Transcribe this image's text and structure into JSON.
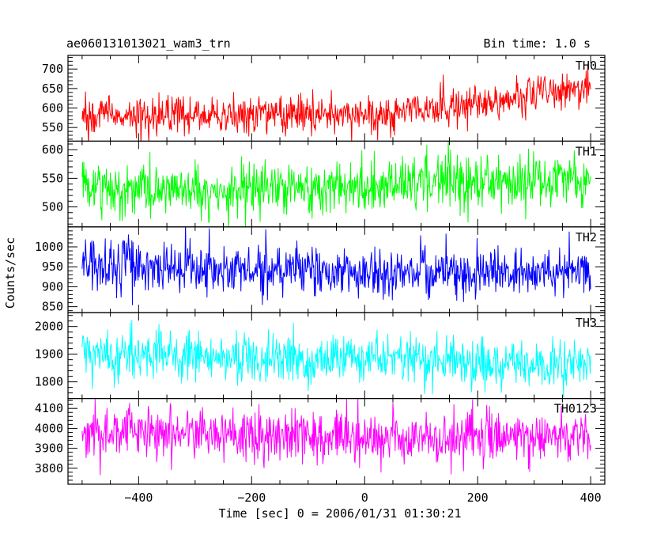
{
  "header": {
    "title": "ae060131013021_wam3_trn",
    "bin_time": "Bin time: 1.0 s"
  },
  "axes": {
    "ylabel": "Counts/sec",
    "xlabel": "Time [sec] 0 = 2006/01/31 01:30:21"
  },
  "chart_data": {
    "type": "line",
    "title": "ae060131013021_wam3_trn",
    "subtitle": "Bin time: 1.0 s",
    "xlabel": "Time [sec] 0 = 2006/01/31 01:30:21",
    "ylabel": "Counts/sec",
    "xlim": [
      -525,
      425
    ],
    "x_ticks": [
      -400,
      -200,
      0,
      200,
      400
    ],
    "x_range": [
      -500,
      400
    ],
    "bin_seconds": 1.0,
    "grid": false,
    "panels": [
      {
        "name": "TH0",
        "color": "#ff0000",
        "ylim": [
          515,
          735
        ],
        "y_ticks": [
          550,
          600,
          650,
          700
        ],
        "trend": [
          [
            -500,
            580
          ],
          [
            -200,
            580
          ],
          [
            0,
            585
          ],
          [
            100,
            600
          ],
          [
            200,
            610
          ],
          [
            300,
            635
          ],
          [
            400,
            660
          ]
        ],
        "noise_sd": 24
      },
      {
        "name": "TH1",
        "color": "#00ff00",
        "ylim": [
          465,
          615
        ],
        "y_ticks": [
          500,
          550,
          600
        ],
        "trend": [
          [
            -500,
            530
          ],
          [
            -100,
            530
          ],
          [
            100,
            540
          ],
          [
            400,
            545
          ]
        ],
        "noise_sd": 23
      },
      {
        "name": "TH2",
        "color": "#0000ff",
        "ylim": [
          835,
          1050
        ],
        "y_ticks": [
          850,
          900,
          950,
          1000
        ],
        "trend": [
          [
            -500,
            955
          ],
          [
            -200,
            945
          ],
          [
            0,
            940
          ],
          [
            200,
            935
          ],
          [
            400,
            930
          ]
        ],
        "noise_sd": 31
      },
      {
        "name": "TH3",
        "color": "#00ffff",
        "ylim": [
          1740,
          2050
        ],
        "y_ticks": [
          1800,
          1900,
          2000
        ],
        "trend": [
          [
            -500,
            1900
          ],
          [
            -200,
            1890
          ],
          [
            0,
            1880
          ],
          [
            200,
            1870
          ],
          [
            400,
            1860
          ]
        ],
        "noise_sd": 44
      },
      {
        "name": "TH0123",
        "color": "#ff00ff",
        "ylim": [
          3720,
          4150
        ],
        "y_ticks": [
          3800,
          3900,
          4000,
          4100
        ],
        "trend": [
          [
            -500,
            3980
          ],
          [
            -200,
            3970
          ],
          [
            0,
            3955
          ],
          [
            200,
            3950
          ],
          [
            400,
            3960
          ]
        ],
        "noise_sd": 63
      }
    ]
  }
}
